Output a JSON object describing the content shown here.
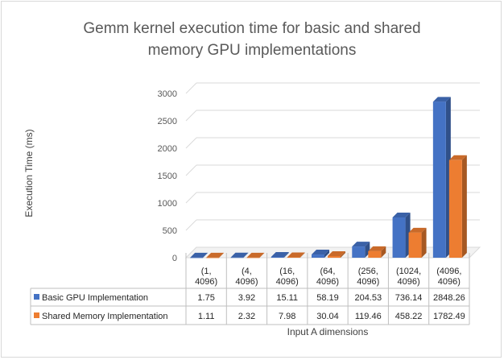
{
  "chart_data": {
    "type": "bar",
    "title_lines": [
      "Gemm kernel execution time for basic and shared",
      "memory GPU implementations"
    ],
    "ylabel": "Execution Time (ms)",
    "xlabel": "Input A dimensions",
    "ylim": [
      0,
      3000
    ],
    "yticks": [
      0,
      500,
      1000,
      1500,
      2000,
      2500,
      3000
    ],
    "grid": true,
    "categories": [
      [
        "(1,",
        "4096)"
      ],
      [
        "(4,",
        "4096)"
      ],
      [
        "(16,",
        "4096)"
      ],
      [
        "(64,",
        "4096)"
      ],
      [
        "(256,",
        "4096)"
      ],
      [
        "(1024,",
        "4096)"
      ],
      [
        "(4096,",
        "4096)"
      ]
    ],
    "series": [
      {
        "name": "Basic GPU Implementation",
        "color": "#4472c4",
        "values": [
          1.75,
          3.92,
          15.11,
          58.19,
          204.53,
          736.14,
          2848.26
        ],
        "labels": [
          "1.75",
          "3.92",
          "15.11",
          "58.19",
          "204.53",
          "736.14",
          "2848.26"
        ]
      },
      {
        "name": "Shared Memory Implementation",
        "color": "#ed7d31",
        "values": [
          1.11,
          2.32,
          7.98,
          30.04,
          119.46,
          458.22,
          1782.49
        ],
        "labels": [
          "1.11",
          "2.32",
          "7.98",
          "30.04",
          "119.46",
          "458.22",
          "1782.49"
        ]
      }
    ],
    "legend_placement": "data-table"
  }
}
